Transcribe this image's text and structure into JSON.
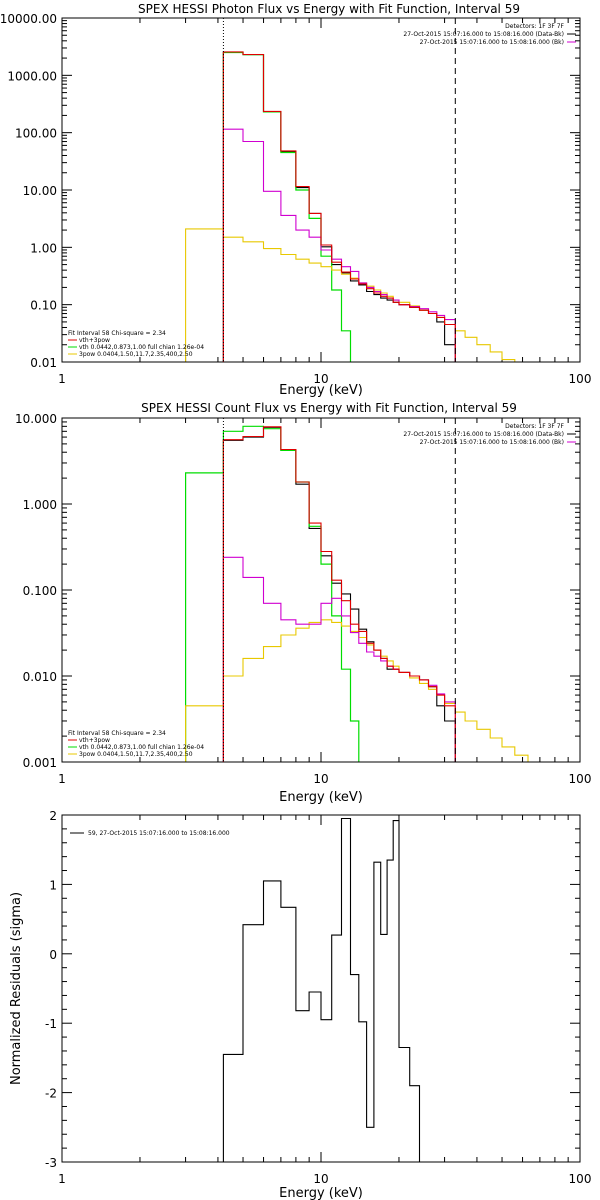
{
  "colors": {
    "data": "#000000",
    "thermal": "#00dd00",
    "nonthermal": "#e8c800",
    "model": "#d000d0",
    "total": "#e00000",
    "dashed": "#000000"
  },
  "chart_data": [
    {
      "type": "line",
      "title": "SPEX HESSI Photon Flux vs Energy with Fit Function, Interval 59",
      "xlabel": "Energy (keV)",
      "ylabel": "",
      "xscale": "log",
      "yscale": "log",
      "xlim": [
        1,
        100
      ],
      "ylim": [
        0.01,
        10000
      ],
      "xticks": [
        "1",
        "10",
        "100"
      ],
      "yticks": [
        "10000.00",
        "1000.00",
        "100.00",
        "10.00",
        "1.00",
        "0.10",
        "0.01"
      ],
      "ytick_values": [
        10000,
        1000,
        100,
        10,
        1,
        0.1,
        0.01
      ],
      "legend_top": [
        "Detectors: 1F 3F 7F",
        "27-Oct-2015 15:07:16.000 to 15:08:16.000 (Data-Bk)",
        "27-Oct-2015 15:07:16.000 to 15:08:16.000 (Bk)"
      ],
      "legend_bottom": [
        "Fit Interval 58   Chi-square = 2.34",
        "vth+3pow",
        "vth 0.0442,0.873,1.00  full chian 1.26e-04",
        "3pow 0.0404,1.50,11.7,2.35,400,2.50"
      ],
      "vlines": [
        {
          "x": 4.2,
          "style": "dotted"
        },
        {
          "x": 33,
          "style": "dashed"
        }
      ],
      "edges": [
        3,
        4.2,
        5,
        6,
        7,
        8,
        9,
        10,
        11,
        12,
        13,
        14,
        15,
        16,
        17,
        18,
        19,
        20,
        22,
        24,
        26,
        28,
        30,
        33,
        36,
        40,
        45,
        50,
        56,
        63
      ],
      "series": [
        {
          "role": "data",
          "values": [
            null,
            2550,
            2300,
            230,
            47,
            11,
            3.9,
            1.02,
            0.5,
            0.36,
            0.26,
            0.22,
            0.17,
            0.15,
            0.13,
            0.12,
            0.11,
            0.1,
            0.09,
            0.08,
            0.07,
            0.05,
            0.02,
            null,
            null,
            null,
            null,
            null,
            null
          ]
        },
        {
          "role": "thermal",
          "values": [
            null,
            2500,
            2300,
            230,
            45,
            10,
            3.2,
            0.7,
            0.18,
            0.035,
            0.008,
            null,
            null,
            null,
            null,
            null,
            null,
            null,
            null,
            null,
            null,
            null,
            null,
            null,
            null,
            null,
            null,
            null,
            null
          ]
        },
        {
          "role": "nonthermal",
          "values": [
            2.1,
            1.5,
            1.25,
            0.95,
            0.75,
            0.62,
            0.53,
            0.46,
            0.4,
            0.34,
            0.29,
            0.24,
            0.21,
            0.18,
            0.16,
            0.14,
            0.12,
            0.11,
            0.095,
            0.08,
            0.07,
            0.06,
            0.045,
            0.035,
            0.027,
            0.02,
            0.015,
            0.011,
            0.008
          ]
        },
        {
          "role": "model",
          "values": [
            null,
            115,
            70,
            9.5,
            3.6,
            2.0,
            1.5,
            0.9,
            0.62,
            0.46,
            0.38,
            0.24,
            0.2,
            0.17,
            0.15,
            0.13,
            0.12,
            0.1,
            0.093,
            0.085,
            0.075,
            0.065,
            0.055,
            null,
            null,
            null,
            null,
            null,
            null
          ]
        },
        {
          "role": "total",
          "values": [
            null,
            2560,
            2310,
            235,
            48,
            11.5,
            3.9,
            1.1,
            0.55,
            0.37,
            0.28,
            0.23,
            0.19,
            0.16,
            0.14,
            0.13,
            0.11,
            0.1,
            0.09,
            0.08,
            0.07,
            0.06,
            0.045,
            null,
            null,
            null,
            null,
            null,
            null
          ]
        }
      ]
    },
    {
      "type": "line",
      "title": "SPEX HESSI Count Flux vs Energy with Fit Function, Interval 59",
      "xlabel": "Energy (keV)",
      "ylabel": "",
      "xscale": "log",
      "yscale": "log",
      "xlim": [
        1,
        100
      ],
      "ylim": [
        0.001,
        10
      ],
      "xticks": [
        "1",
        "10",
        "100"
      ],
      "yticks": [
        "10.000",
        "1.000",
        "0.100",
        "0.010",
        "0.001"
      ],
      "ytick_values": [
        10,
        1,
        0.1,
        0.01,
        0.001
      ],
      "legend_top": [
        "Detectors: 1F 3F 7F",
        "27-Oct-2015 15:07:16.000 to 15:08:16.000 (Data-Bk)",
        "27-Oct-2015 15:07:16.000 to 15:08:16.000 (Bk)"
      ],
      "legend_bottom": [
        "Fit Interval 58   Chi-square = 2.34",
        "vth+3pow",
        "vth 0.0442,0.873,1.00  full chian 1.26e-04",
        "3pow 0.0404,1.50,11.7,2.35,400,2.50"
      ],
      "vlines": [
        {
          "x": 4.2,
          "style": "dotted"
        },
        {
          "x": 33,
          "style": "dashed"
        }
      ],
      "edges": [
        3,
        4.2,
        5,
        6,
        7,
        8,
        9,
        10,
        11,
        12,
        13,
        14,
        15,
        16,
        17,
        18,
        19,
        20,
        22,
        24,
        26,
        28,
        30,
        33,
        36,
        40,
        45,
        50,
        56,
        63,
        70
      ],
      "series": [
        {
          "role": "data",
          "values": [
            null,
            5.5,
            6.0,
            7.8,
            4.2,
            1.7,
            0.52,
            0.25,
            0.12,
            0.09,
            0.06,
            0.035,
            0.025,
            0.02,
            0.016,
            0.012,
            0.012,
            0.011,
            0.01,
            0.009,
            0.0075,
            0.0045,
            0.003,
            null,
            null,
            null,
            null,
            null,
            null,
            null
          ]
        },
        {
          "role": "thermal",
          "values": [
            2.3,
            7.0,
            8.0,
            7.5,
            4.2,
            1.8,
            0.55,
            0.2,
            0.05,
            0.012,
            0.003,
            null,
            null,
            null,
            null,
            null,
            null,
            null,
            null,
            null,
            null,
            null,
            null,
            null,
            null,
            null,
            null,
            null,
            null,
            null
          ]
        },
        {
          "role": "nonthermal",
          "values": [
            0.0045,
            0.01,
            0.016,
            0.022,
            0.03,
            0.036,
            0.042,
            0.045,
            0.042,
            0.038,
            0.033,
            0.028,
            0.023,
            0.02,
            0.017,
            0.015,
            0.013,
            0.011,
            0.0095,
            0.0082,
            0.007,
            0.006,
            0.0048,
            0.0038,
            0.003,
            0.0024,
            0.0019,
            0.0015,
            0.0012,
            0.001
          ]
        },
        {
          "role": "model",
          "values": [
            null,
            0.24,
            0.14,
            0.07,
            0.045,
            0.04,
            0.04,
            0.07,
            0.08,
            0.05,
            0.032,
            0.024,
            0.019,
            0.017,
            0.015,
            0.013,
            0.012,
            0.011,
            0.01,
            0.009,
            0.0078,
            0.0062,
            0.005,
            null,
            null,
            null,
            null,
            null,
            null,
            null
          ]
        },
        {
          "role": "total",
          "values": [
            null,
            5.6,
            6.1,
            7.9,
            4.3,
            1.8,
            0.6,
            0.28,
            0.13,
            0.075,
            0.04,
            0.033,
            0.024,
            0.02,
            0.016,
            0.013,
            0.012,
            0.011,
            0.01,
            0.009,
            0.0075,
            0.006,
            0.0045,
            null,
            null,
            null,
            null,
            null,
            null,
            null
          ]
        }
      ]
    },
    {
      "type": "line",
      "title": "",
      "xlabel": "Energy (keV)",
      "ylabel": "Normalized Residuals (sigma)",
      "xscale": "log",
      "yscale": "linear",
      "xlim": [
        1,
        100
      ],
      "ylim": [
        -3,
        2
      ],
      "xticks": [
        "1",
        "10",
        "100"
      ],
      "yticks": [
        "2",
        "1",
        "0",
        "-1",
        "-2",
        "-3"
      ],
      "ytick_values": [
        2,
        1,
        0,
        -1,
        -2,
        -3
      ],
      "legend": "59, 27-Oct-2015 15:07:16.000 to 15:08:16.000",
      "edges": [
        4.2,
        5,
        6,
        7,
        8,
        9,
        10,
        11,
        12,
        13,
        14,
        15,
        16,
        17,
        18,
        19,
        20,
        22,
        24,
        26,
        28,
        30,
        33
      ],
      "series": [
        {
          "role": "data",
          "values": [
            -1.45,
            0.42,
            1.05,
            0.67,
            -0.82,
            -0.55,
            -0.95,
            0.27,
            1.95,
            -0.3,
            -0.98,
            -2.5,
            1.32,
            0.28,
            1.35,
            1.92,
            -1.35,
            -1.9,
            null,
            null,
            null,
            null
          ]
        }
      ]
    }
  ]
}
